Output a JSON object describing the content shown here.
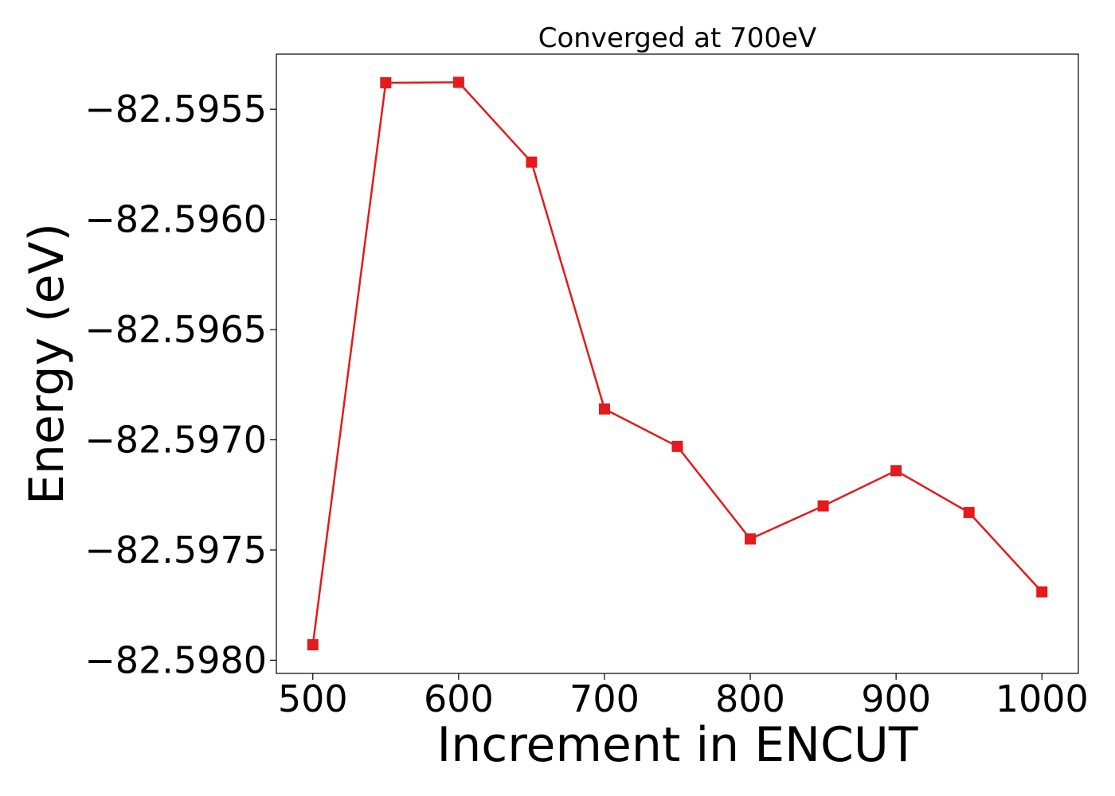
{
  "chart_data": {
    "type": "line",
    "title": "Converged at 700eV",
    "xlabel": "Increment in ENCUT",
    "ylabel": "Energy (eV)",
    "xlim": [
      475,
      1025
    ],
    "ylim": [
      -82.59806,
      -82.59525
    ],
    "xticks": [
      500,
      600,
      700,
      800,
      900,
      1000
    ],
    "yticks": [
      -82.5955,
      -82.596,
      -82.5965,
      -82.597,
      -82.5975,
      -82.598
    ],
    "ytick_labels": [
      "−82.5955",
      "−82.5960",
      "−82.5965",
      "−82.5970",
      "−82.5975",
      "−82.5980"
    ],
    "grid": false,
    "series": [
      {
        "color": "#e41a1c",
        "marker": "square",
        "x": [
          500,
          550,
          600,
          650,
          700,
          750,
          800,
          850,
          900,
          950,
          1000
        ],
        "y": [
          -82.59793,
          -82.59538,
          -82.595378,
          -82.59574,
          -82.59686,
          -82.59703,
          -82.59745,
          -82.5973,
          -82.59714,
          -82.59733,
          -82.59769
        ]
      }
    ]
  }
}
